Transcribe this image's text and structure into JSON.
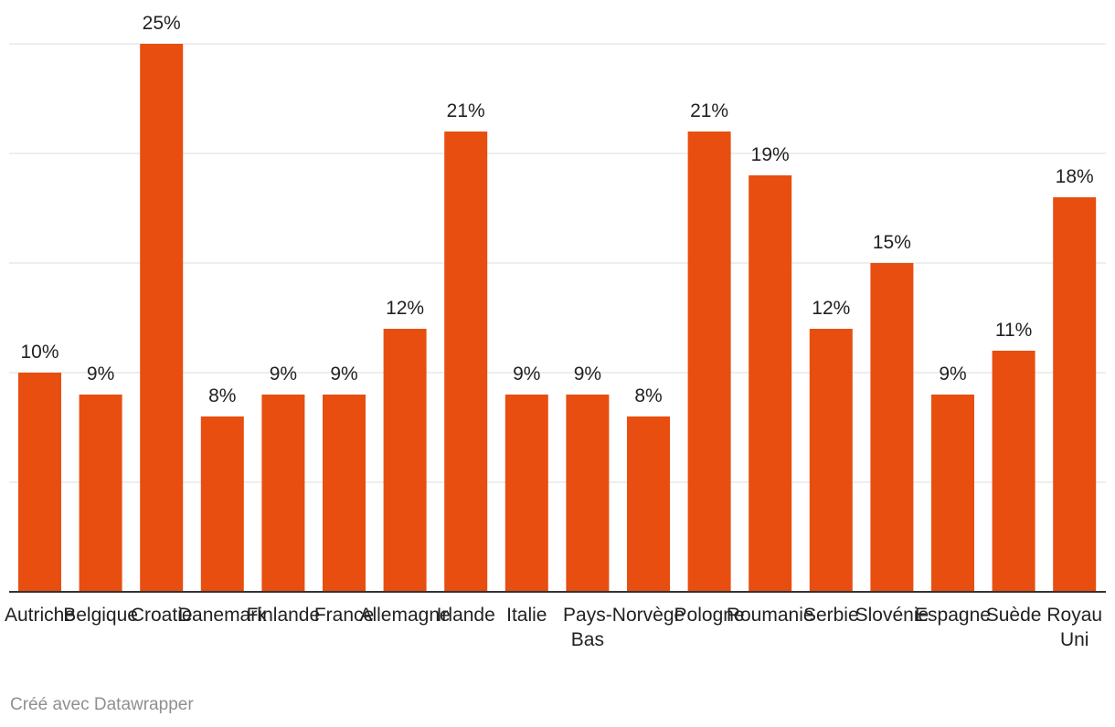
{
  "chart_data": {
    "type": "bar",
    "categories": [
      "Autriche",
      "Belgique",
      "Croatie",
      "Danemark",
      "Finlande",
      "France",
      "Allemagne",
      "Irlande",
      "Italie",
      "Pays-Bas",
      "Norvège",
      "Pologne",
      "Roumanie",
      "Serbie",
      "Slovénie",
      "Espagne",
      "Suède",
      "Royaume-Uni"
    ],
    "category_display_lines": [
      [
        "Autriche"
      ],
      [
        "Belgique"
      ],
      [
        "Croatie"
      ],
      [
        "Danemark"
      ],
      [
        "Finlande"
      ],
      [
        "France"
      ],
      [
        "Allemagne"
      ],
      [
        "Irlande"
      ],
      [
        "Italie"
      ],
      [
        "Pays-",
        "Bas"
      ],
      [
        "Norvège"
      ],
      [
        "Pologne"
      ],
      [
        "Roumanie"
      ],
      [
        "Serbie"
      ],
      [
        "Slovénie"
      ],
      [
        "Espagne"
      ],
      [
        "Suède"
      ],
      [
        "Royau",
        "Uni"
      ]
    ],
    "values": [
      10,
      9,
      25,
      8,
      9,
      9,
      12,
      21,
      9,
      9,
      8,
      21,
      19,
      12,
      15,
      9,
      11,
      18
    ],
    "value_labels": [
      "10%",
      "9%",
      "25%",
      "8%",
      "9%",
      "9%",
      "12%",
      "21%",
      "9%",
      "9%",
      "8%",
      "21%",
      "19%",
      "12%",
      "15%",
      "9%",
      "11%",
      "18%"
    ],
    "title": "",
    "xlabel": "",
    "ylabel": "",
    "ylim": [
      0,
      25
    ],
    "grid": true,
    "gridlines_at": [
      5,
      10,
      15,
      20,
      25
    ],
    "bar_color": "#e84e10",
    "gridline_color": "#dddddd",
    "axis_color": "#333333"
  },
  "footer": {
    "credit": "Créé avec Datawrapper"
  }
}
